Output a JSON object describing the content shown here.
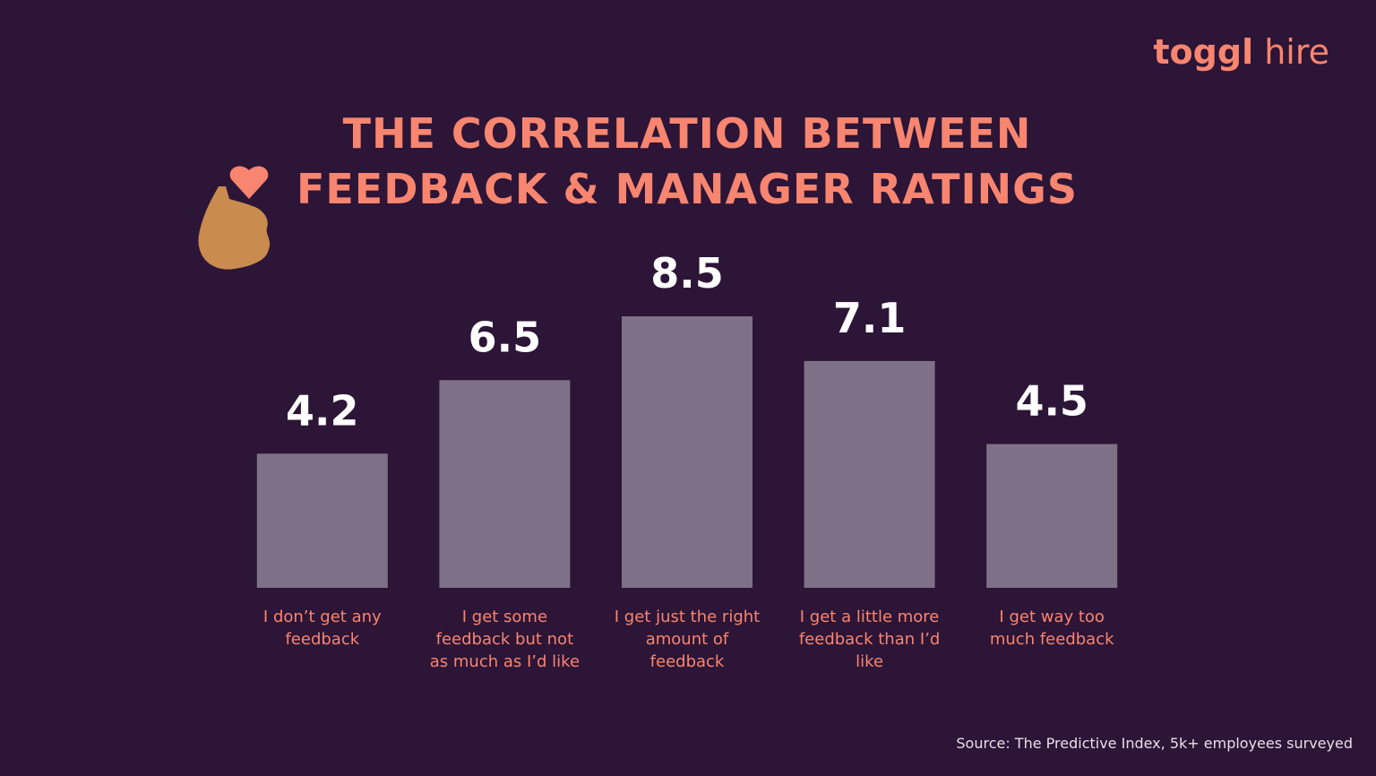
{
  "chart_data": {
    "type": "bar",
    "title": "THE CORRELATION BETWEEN FEEDBACK & MANAGER RATINGS",
    "categories": [
      "I don’t get any feedback",
      "I get some feedback but not as much as I’d like",
      "I get just the right amount of feedback",
      "I get a little more feedback than I’d like",
      "I get way too much feedback"
    ],
    "values": [
      4.2,
      6.5,
      8.5,
      7.1,
      4.5
    ],
    "color": "#7e7187",
    "source": "Source: The Predictive Index, 5k+ employees surveyed"
  },
  "logo": {
    "brand": "toggl",
    "product": "hire"
  }
}
